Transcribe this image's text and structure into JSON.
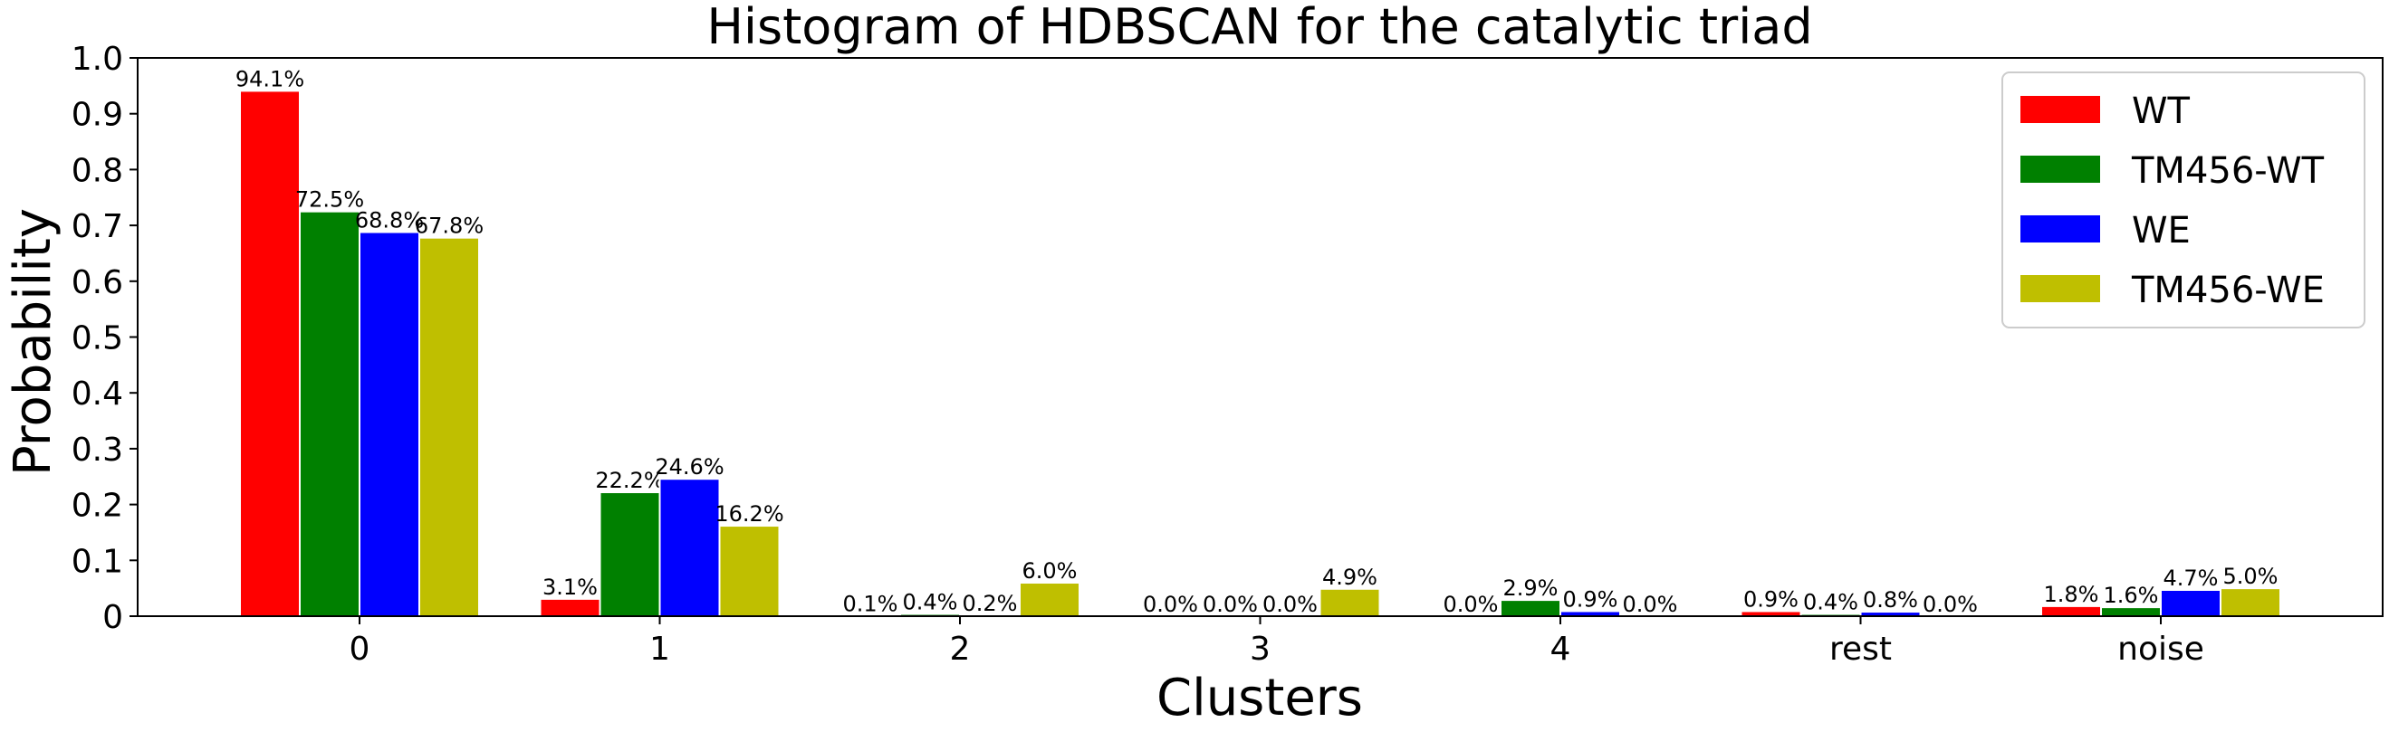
{
  "chart_data": {
    "type": "bar",
    "title": "Histogram of HDBSCAN for the catalytic triad",
    "xlabel": "Clusters",
    "ylabel": "Probability",
    "ylim": [
      0,
      1.0
    ],
    "yticks": [
      "0",
      "0.1",
      "0.2",
      "0.3",
      "0.4",
      "0.5",
      "0.6",
      "0.7",
      "0.8",
      "0.9",
      "1.0"
    ],
    "categories": [
      "0",
      "1",
      "2",
      "3",
      "4",
      "rest",
      "noise"
    ],
    "series": [
      {
        "name": "WT",
        "color": "#ff0000",
        "values": [
          0.941,
          0.031,
          0.001,
          0.0,
          0.0,
          0.009,
          0.018
        ],
        "labels": [
          "94.1%",
          "3.1%",
          "0.1%",
          "0.0%",
          "0.0%",
          "0.9%",
          "1.8%"
        ]
      },
      {
        "name": "TM456-WT",
        "color": "#008000",
        "values": [
          0.725,
          0.222,
          0.004,
          0.0,
          0.029,
          0.004,
          0.016
        ],
        "labels": [
          "72.5%",
          "22.2%",
          "0.4%",
          "0.0%",
          "2.9%",
          "0.4%",
          "1.6%"
        ]
      },
      {
        "name": "WE",
        "color": "#0000ff",
        "values": [
          0.688,
          0.246,
          0.002,
          0.0,
          0.009,
          0.008,
          0.047
        ],
        "labels": [
          "68.8%",
          "24.6%",
          "0.2%",
          "0.0%",
          "0.9%",
          "0.8%",
          "4.7%"
        ]
      },
      {
        "name": "TM456-WE",
        "color": "#bfbf00",
        "values": [
          0.678,
          0.162,
          0.06,
          0.049,
          0.0,
          0.0,
          0.05
        ],
        "labels": [
          "67.8%",
          "16.2%",
          "6.0%",
          "4.9%",
          "0.0%",
          "0.0%",
          "5.0%"
        ]
      }
    ],
    "legend_position": "top-right",
    "grid": false
  }
}
